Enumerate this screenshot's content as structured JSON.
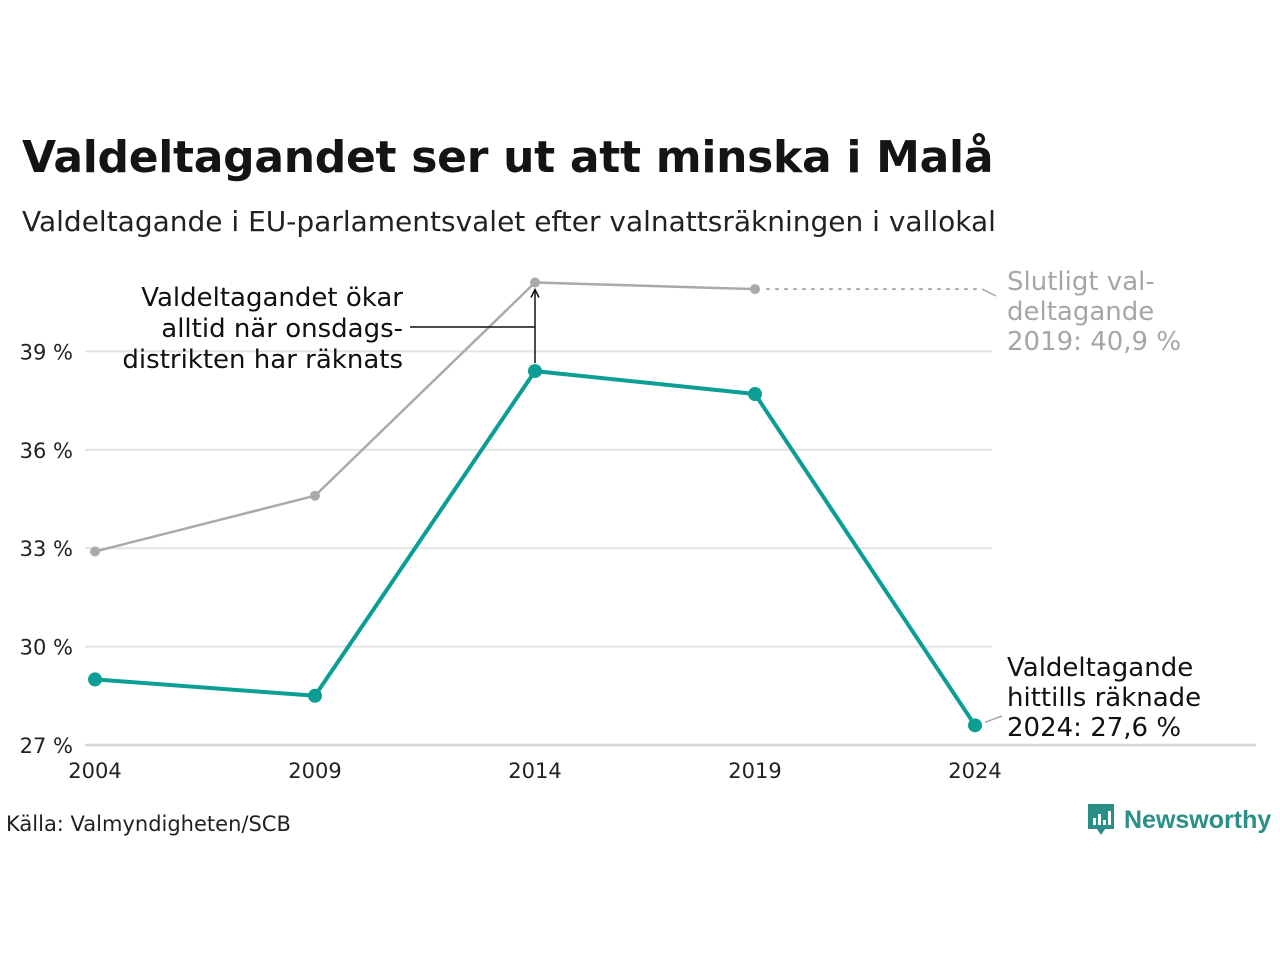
{
  "title": "Valdeltagandet ser ut att minska i Malå",
  "subtitle": "Valdeltagande i EU-parlamentsvalet efter valnattsräkningen i vallokal",
  "source": "Källa: Valmyndigheten/SCB",
  "brand": "Newsworthy",
  "colors": {
    "primary": "#0a9e95",
    "final": "#aaaaaa",
    "grid": "#e4e4e4",
    "axis": "#d6d6d6",
    "annotation": "#111111",
    "annotation_muted": "#a6a6a6",
    "brand": "#2a8f86"
  },
  "chart_data": {
    "type": "line",
    "x": [
      2004,
      2009,
      2014,
      2019,
      2024
    ],
    "xticks": [
      "2004",
      "2009",
      "2014",
      "2019",
      "2024"
    ],
    "yticks": [
      27,
      30,
      33,
      36,
      39
    ],
    "ytick_labels": [
      "27 %",
      "30 %",
      "33 %",
      "36 %",
      "39 %"
    ],
    "ylim": [
      27,
      41.2
    ],
    "grid": true,
    "series": [
      {
        "key": "final",
        "values": [
          32.9,
          34.6,
          41.1,
          40.9,
          null
        ]
      },
      {
        "key": "valnatt",
        "values": [
          29.0,
          28.5,
          38.4,
          37.7,
          27.6
        ]
      }
    ],
    "annotations": {
      "wednesday": [
        "Valdeltagandet ökar",
        "alltid när onsdags-",
        "distrikten har räknats"
      ],
      "final_2019": [
        "Slutligt val-",
        "deltagande",
        "2019: 40,9 %"
      ],
      "counted_2024": [
        "Valdeltagande",
        "hittills räknade",
        "2024: 27,6 %"
      ]
    }
  }
}
